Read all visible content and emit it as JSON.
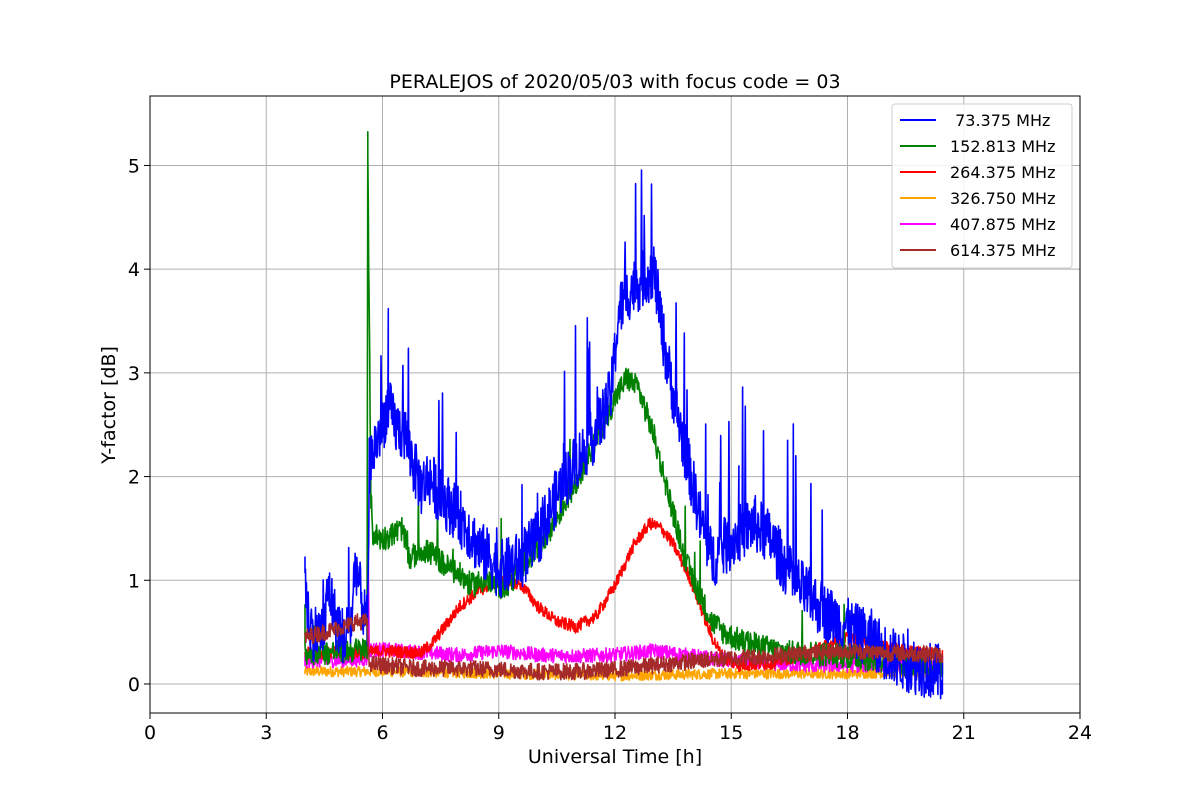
{
  "chart_data": {
    "type": "line",
    "title": "PERALEJOS of 2020/05/03 with focus code = 03",
    "xlabel": "Universal Time [h]",
    "ylabel": "Y-factor [dB]",
    "xlim": [
      0,
      24
    ],
    "ylim": [
      -0.28,
      5.67
    ],
    "xticks": [
      0,
      3,
      6,
      9,
      12,
      15,
      18,
      21,
      24
    ],
    "yticks": [
      0,
      1,
      2,
      3,
      4,
      5
    ],
    "grid": true,
    "legend_position": "upper right",
    "series": [
      {
        "name": " 73.375 MHz",
        "color": "#0000ff",
        "noise": 0.28,
        "x": [
          4.0,
          4.05,
          4.2,
          4.5,
          4.6,
          4.8,
          5.0,
          5.2,
          5.3,
          5.5,
          5.62,
          5.66,
          5.8,
          6.0,
          6.15,
          6.3,
          6.6,
          6.8,
          7.0,
          7.2,
          7.5,
          7.8,
          8.0,
          8.2,
          8.5,
          8.8,
          9.0,
          9.3,
          9.6,
          10.0,
          10.3,
          10.6,
          11.0,
          11.3,
          11.6,
          11.9,
          12.1,
          12.4,
          12.7,
          13.0,
          13.3,
          13.6,
          13.9,
          14.2,
          14.5,
          14.8,
          15.2,
          15.6,
          16.0,
          16.3,
          16.6,
          17.0,
          17.4,
          17.8,
          18.2,
          18.6,
          19.0,
          19.5,
          20.0,
          20.4,
          20.45
        ],
        "y": [
          1.15,
          0.7,
          0.5,
          0.5,
          0.95,
          0.6,
          0.45,
          0.6,
          1.2,
          0.7,
          0.55,
          2.1,
          2.3,
          2.5,
          2.7,
          2.5,
          2.4,
          2.1,
          1.9,
          2.0,
          1.8,
          1.7,
          1.6,
          1.5,
          1.3,
          1.2,
          1.1,
          1.15,
          1.2,
          1.4,
          1.65,
          1.9,
          2.15,
          2.3,
          2.5,
          2.8,
          3.6,
          3.8,
          3.9,
          4.0,
          3.2,
          2.6,
          2.1,
          1.6,
          1.2,
          1.3,
          1.45,
          1.55,
          1.4,
          1.2,
          1.0,
          0.85,
          0.7,
          0.6,
          0.5,
          0.45,
          0.3,
          0.2,
          0.15,
          0.1,
          0.05
        ]
      },
      {
        "name": "152.813 MHz",
        "color": "#008000",
        "noise": 0.12,
        "x": [
          4.0,
          4.5,
          5.0,
          5.5,
          5.6,
          5.62,
          5.65,
          5.7,
          5.75,
          6.0,
          6.3,
          6.5,
          6.7,
          7.0,
          7.3,
          7.6,
          8.0,
          8.3,
          8.6,
          9.0,
          9.2,
          9.5,
          10.0,
          10.5,
          11.0,
          11.5,
          12.0,
          12.3,
          12.6,
          13.0,
          13.4,
          13.8,
          14.2,
          14.5,
          14.8,
          15.2,
          15.6,
          16.0,
          16.5,
          17.0,
          18.0,
          19.0,
          20.0,
          20.45
        ],
        "y": [
          0.3,
          0.3,
          0.32,
          0.33,
          0.35,
          5.3,
          3.8,
          1.8,
          1.45,
          1.4,
          1.45,
          1.5,
          1.2,
          1.3,
          1.25,
          1.15,
          1.05,
          0.95,
          1.0,
          0.95,
          0.9,
          1.1,
          1.3,
          1.6,
          1.95,
          2.35,
          2.75,
          2.95,
          2.85,
          2.4,
          1.8,
          1.2,
          0.85,
          0.6,
          0.5,
          0.42,
          0.38,
          0.34,
          0.3,
          0.3,
          0.27,
          0.22,
          0.18,
          0.15
        ]
      },
      {
        "name": "264.375 MHz",
        "color": "#ff0000",
        "noise": 0.06,
        "x": [
          4.0,
          5.0,
          5.6,
          6.0,
          7.0,
          7.3,
          7.6,
          8.0,
          8.5,
          9.0,
          9.3,
          9.6,
          10.0,
          10.5,
          11.0,
          11.5,
          12.0,
          12.5,
          12.9,
          13.2,
          13.5,
          13.9,
          14.2,
          14.5,
          14.8,
          15.2,
          16.0,
          16.5,
          17.0,
          17.5,
          18.0,
          18.5,
          19.0,
          20.0,
          20.45
        ],
        "y": [
          0.3,
          0.3,
          0.3,
          0.32,
          0.3,
          0.4,
          0.55,
          0.75,
          0.9,
          1.0,
          1.0,
          0.95,
          0.75,
          0.6,
          0.55,
          0.65,
          0.95,
          1.35,
          1.55,
          1.5,
          1.35,
          1.05,
          0.75,
          0.45,
          0.25,
          0.18,
          0.2,
          0.25,
          0.3,
          0.38,
          0.45,
          0.4,
          0.35,
          0.3,
          0.28
        ]
      },
      {
        "name": "326.750 MHz",
        "color": "#ffa500",
        "noise": 0.05,
        "x": [
          4.0,
          6.0,
          9.0,
          12.0,
          15.0,
          18.0,
          20.45
        ],
        "y": [
          0.12,
          0.12,
          0.1,
          0.08,
          0.1,
          0.1,
          0.12
        ]
      },
      {
        "name": "407.875 MHz",
        "color": "#ff00ff",
        "noise": 0.07,
        "x": [
          4.0,
          5.0,
          5.6,
          5.63,
          5.66,
          6.0,
          8.0,
          9.0,
          10.0,
          11.0,
          12.0,
          13.0,
          14.0,
          15.0,
          16.0,
          17.0,
          18.0,
          19.0,
          20.45
        ],
        "y": [
          0.22,
          0.23,
          0.24,
          1.2,
          0.33,
          0.33,
          0.28,
          0.32,
          0.28,
          0.27,
          0.28,
          0.32,
          0.27,
          0.22,
          0.2,
          0.18,
          0.18,
          0.18,
          0.2
        ]
      },
      {
        "name": "614.375 MHz",
        "color": "#a52a2a",
        "noise": 0.08,
        "x": [
          4.0,
          4.5,
          5.0,
          5.3,
          5.6,
          5.65,
          6.0,
          7.0,
          8.0,
          9.0,
          10.0,
          11.0,
          12.0,
          13.0,
          14.0,
          15.0,
          16.0,
          17.0,
          18.0,
          19.0,
          20.0,
          20.45
        ],
        "y": [
          0.45,
          0.5,
          0.55,
          0.6,
          0.6,
          0.2,
          0.18,
          0.15,
          0.15,
          0.14,
          0.12,
          0.12,
          0.14,
          0.18,
          0.22,
          0.25,
          0.27,
          0.3,
          0.32,
          0.3,
          0.29,
          0.28
        ]
      }
    ]
  }
}
